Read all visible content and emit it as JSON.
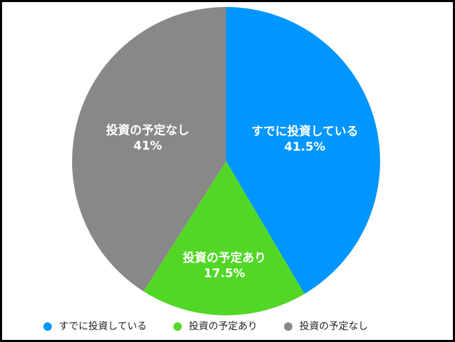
{
  "chart_data": {
    "type": "pie",
    "categories": [
      "すでに投資している",
      "投資の予定あり",
      "投資の予定なし"
    ],
    "values": [
      41.5,
      17.5,
      41
    ],
    "value_labels": [
      "41.5%",
      "17.5%",
      "41%"
    ],
    "colors": [
      "#0096ff",
      "#52d726",
      "#888888"
    ],
    "legend": "bottom"
  }
}
